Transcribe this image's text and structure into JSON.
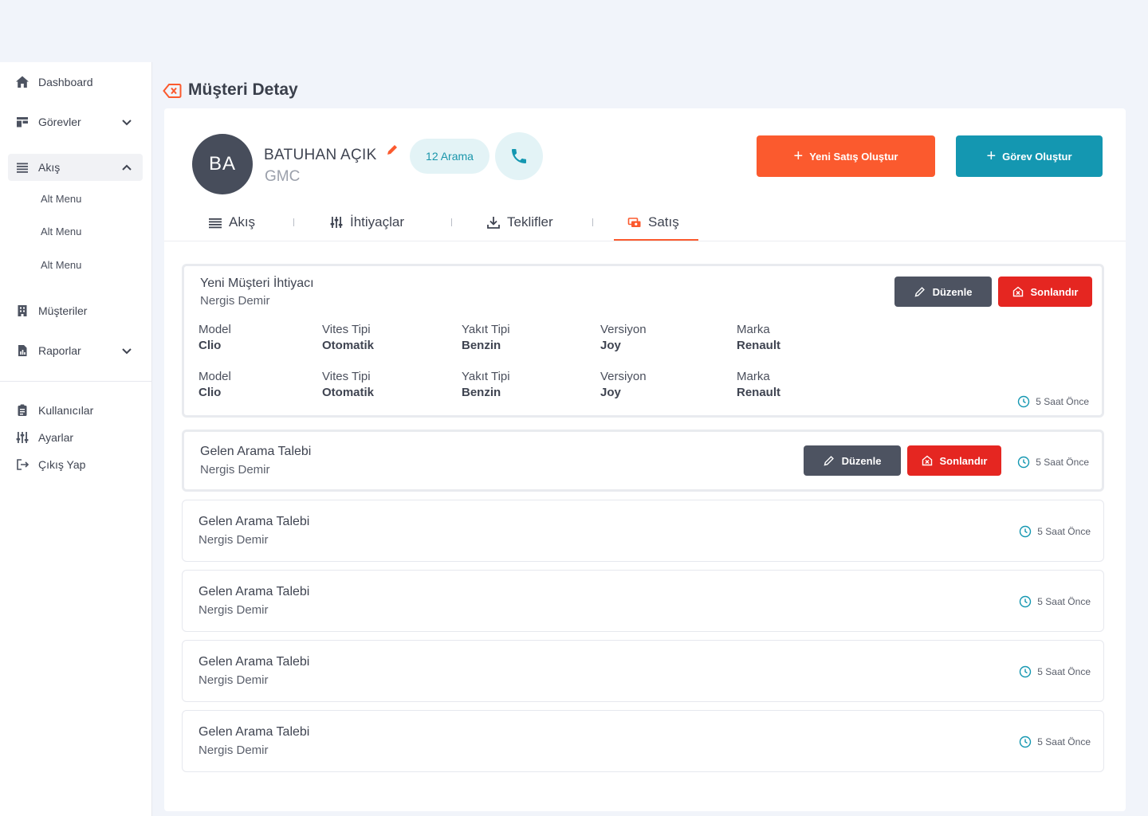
{
  "sidebar": {
    "items": [
      {
        "label": "Dashboard"
      },
      {
        "label": "Görevler"
      },
      {
        "label": "Akış"
      },
      {
        "label": "Müşteriler"
      },
      {
        "label": "Raporlar"
      }
    ],
    "sub_items": [
      "Alt Menu",
      "Alt Menu",
      "Alt Menu"
    ],
    "bottom_items": [
      {
        "label": "Kullanıcılar"
      },
      {
        "label": "Ayarlar"
      },
      {
        "label": "Çıkış Yap"
      }
    ]
  },
  "header": {
    "title": "Müşteri Detay"
  },
  "customer": {
    "initials": "BA",
    "name": "BATUHAN AÇIK",
    "company": "GMC",
    "call_count": "12 Arama"
  },
  "actions": {
    "new_sale": "Yeni Satış Oluştur",
    "new_task": "Görev Oluştur"
  },
  "tabs": [
    {
      "label": "Akış"
    },
    {
      "label": "İhtiyaçlar"
    },
    {
      "label": "Teklifler"
    },
    {
      "label": "Satış"
    }
  ],
  "colors": {
    "accent": "#fb5a2e",
    "teal": "#1497b1",
    "danger": "#e52621",
    "dark": "#4d5361"
  },
  "buttons": {
    "edit": "Düzenle",
    "finish": "Sonlandır"
  },
  "records": [
    {
      "title": "Yeni Müşteri İhtiyacı",
      "subtitle": "Nergis Demir",
      "time": "5 Saat Önce",
      "fields": [
        [
          {
            "label": "Model",
            "value": "Clio"
          },
          {
            "label": "Vites Tipi",
            "value": "Otomatik"
          },
          {
            "label": "Yakıt Tipi",
            "value": "Benzin"
          },
          {
            "label": "Versiyon",
            "value": "Joy"
          },
          {
            "label": "Marka",
            "value": "Renault"
          }
        ],
        [
          {
            "label": "Model",
            "value": "Clio"
          },
          {
            "label": "Vites Tipi",
            "value": "Otomatik"
          },
          {
            "label": "Yakıt Tipi",
            "value": "Benzin"
          },
          {
            "label": "Versiyon",
            "value": "Joy"
          },
          {
            "label": "Marka",
            "value": "Renault"
          }
        ]
      ]
    },
    {
      "title": "Gelen Arama Talebi",
      "subtitle": "Nergis Demir",
      "time": "5 Saat Önce"
    },
    {
      "title": "Gelen Arama Talebi",
      "subtitle": "Nergis Demir",
      "time": "5 Saat Önce"
    },
    {
      "title": "Gelen Arama Talebi",
      "subtitle": "Nergis Demir",
      "time": "5 Saat Önce"
    },
    {
      "title": "Gelen Arama Talebi",
      "subtitle": "Nergis Demir",
      "time": "5 Saat Önce"
    },
    {
      "title": "Gelen Arama Talebi",
      "subtitle": "Nergis Demir",
      "time": "5 Saat Önce"
    }
  ]
}
